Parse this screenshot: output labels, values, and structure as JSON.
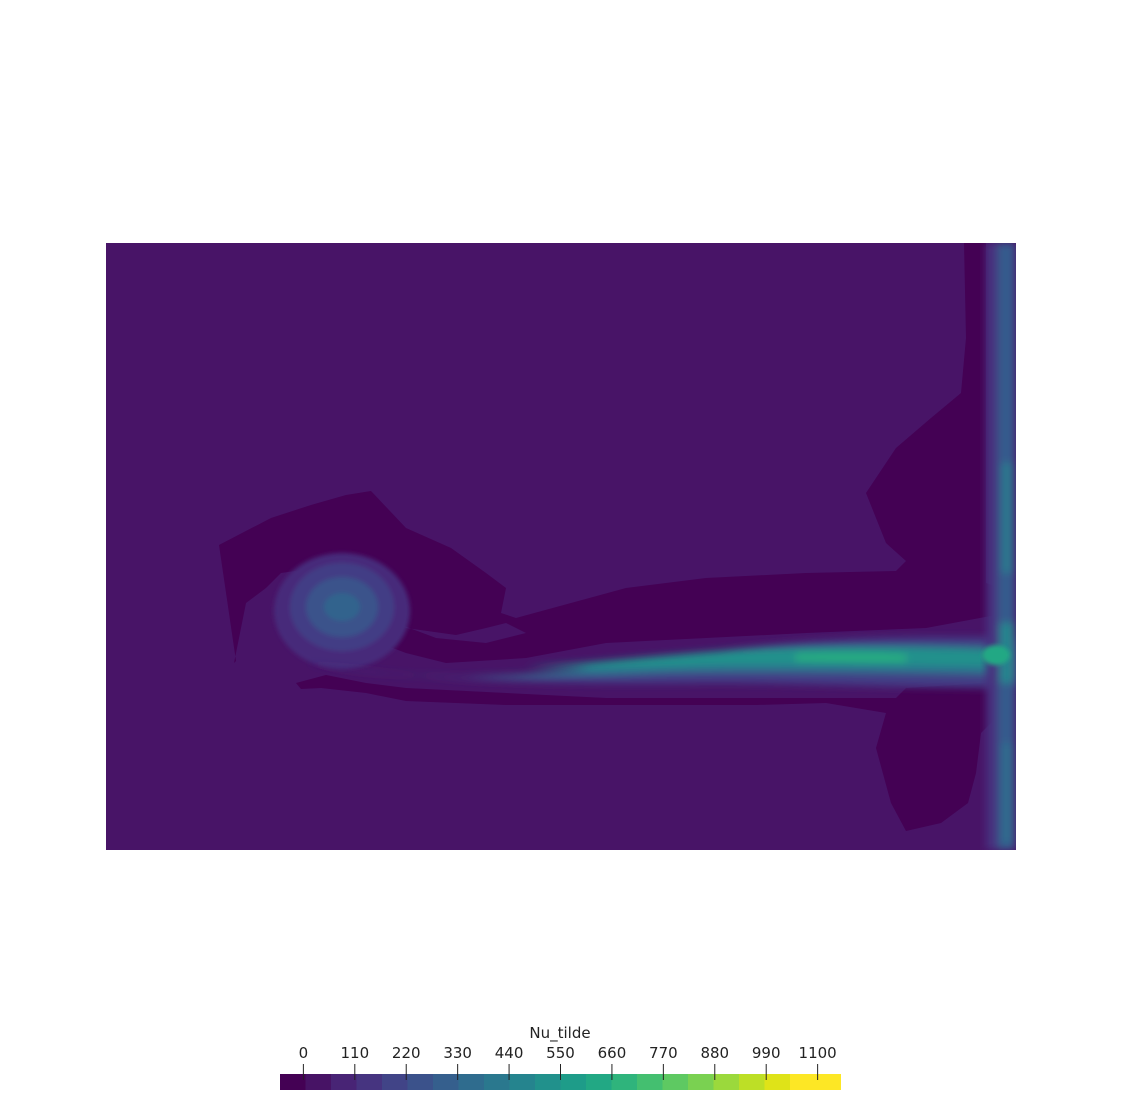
{
  "figure": {
    "background_color": "#460b5e",
    "colormap": "viridis"
  },
  "colorbar": {
    "title": "Nu_tilde",
    "range": [
      -50,
      1150
    ],
    "ticks": [
      0,
      110,
      220,
      330,
      440,
      550,
      660,
      770,
      880,
      990,
      1100
    ],
    "tick_labels": [
      "0",
      "110",
      "220",
      "330",
      "440",
      "550",
      "660",
      "770",
      "880",
      "990",
      "1100"
    ],
    "bands": 22,
    "colors": [
      "#440154",
      "#471365",
      "#482475",
      "#463480",
      "#414487",
      "#3b528b",
      "#355f8d",
      "#2f6c8e",
      "#2a788e",
      "#25848e",
      "#21918c",
      "#1e9c89",
      "#22a884",
      "#2fb47c",
      "#44bf70",
      "#5ec962",
      "#7ad151",
      "#9bd93c",
      "#bddf26",
      "#dfe318",
      "#fde725",
      "#fde725"
    ]
  }
}
